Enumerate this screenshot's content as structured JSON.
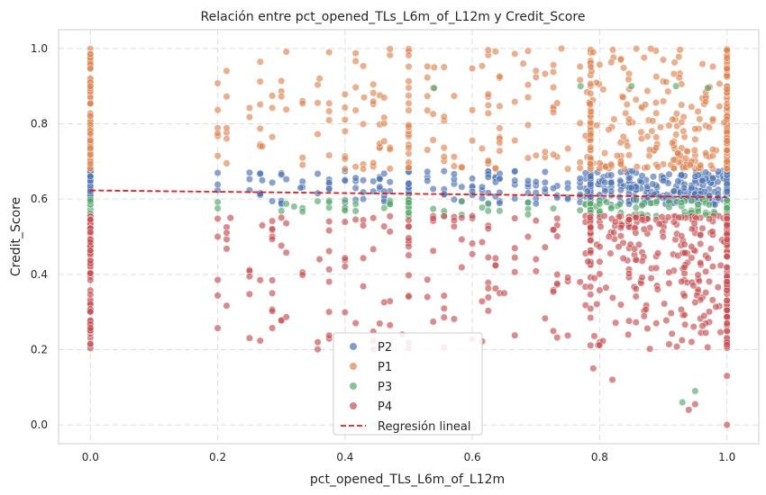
{
  "chart_data": {
    "type": "scatter",
    "title": "Relación entre pct_opened_TLs_L6m_of_L12m y Credit_Score",
    "xlabel": "pct_opened_TLs_L6m_of_L12m",
    "ylabel": "Credit_Score",
    "xlim": [
      -0.05,
      1.05
    ],
    "ylim": [
      -0.05,
      1.05
    ],
    "xticks": [
      "0.0",
      "0.2",
      "0.4",
      "0.6",
      "0.8",
      "1.0"
    ],
    "yticks": [
      "0.0",
      "0.2",
      "0.4",
      "0.6",
      "0.8",
      "1.0"
    ],
    "grid": true,
    "legend_position": "bottom-center",
    "series": [
      {
        "name": "P2",
        "color": "#4c72b0",
        "y_band": [
          0.585,
          0.675
        ],
        "sample_points": [
          [
            0.0,
            0.62
          ],
          [
            0.0,
            0.66
          ],
          [
            0.27,
            0.65
          ],
          [
            0.33,
            0.63
          ],
          [
            0.5,
            0.64
          ],
          [
            0.6,
            0.62
          ],
          [
            0.75,
            0.6
          ],
          [
            0.85,
            0.63
          ],
          [
            0.95,
            0.66
          ],
          [
            1.0,
            0.62
          ]
        ]
      },
      {
        "name": "P1",
        "color": "#dd8452",
        "y_band": [
          0.68,
          1.0
        ],
        "sample_points": [
          [
            0.0,
            0.985
          ],
          [
            0.0,
            0.9
          ],
          [
            0.27,
            0.74
          ],
          [
            0.36,
            0.92
          ],
          [
            0.43,
            0.87
          ],
          [
            0.54,
            0.95
          ],
          [
            0.68,
            0.96
          ],
          [
            0.74,
            1.0
          ],
          [
            0.79,
            0.99
          ],
          [
            0.9,
            0.97
          ],
          [
            1.0,
            0.995
          ]
        ]
      },
      {
        "name": "P3",
        "color": "#55a868",
        "y_band": [
          0.555,
          0.6
        ],
        "sample_points": [
          [
            0.32,
            0.58
          ],
          [
            0.4,
            0.57
          ],
          [
            0.54,
            0.895
          ],
          [
            0.77,
            0.9
          ],
          [
            0.85,
            0.9
          ],
          [
            0.92,
            0.9
          ],
          [
            0.97,
            0.895
          ],
          [
            0.93,
            0.06
          ],
          [
            0.95,
            0.09
          ]
        ]
      },
      {
        "name": "P4",
        "color": "#c44e52",
        "y_band": [
          0.2,
          0.555
        ],
        "sample_points": [
          [
            0.0,
            0.215
          ],
          [
            0.2,
            0.5
          ],
          [
            0.22,
            0.55
          ],
          [
            0.27,
            0.53
          ],
          [
            0.36,
            0.44
          ],
          [
            0.49,
            0.24
          ],
          [
            0.65,
            0.35
          ],
          [
            0.79,
            0.15
          ],
          [
            0.82,
            0.12
          ],
          [
            0.94,
            0.04
          ],
          [
            0.95,
            0.055
          ],
          [
            1.0,
            0.0
          ],
          [
            1.0,
            0.13
          ]
        ]
      }
    ],
    "regression": {
      "name": "Regresión lineal",
      "color": "#e31a1c",
      "x": [
        0.0,
        1.0
      ],
      "y": [
        0.623,
        0.605
      ]
    }
  }
}
